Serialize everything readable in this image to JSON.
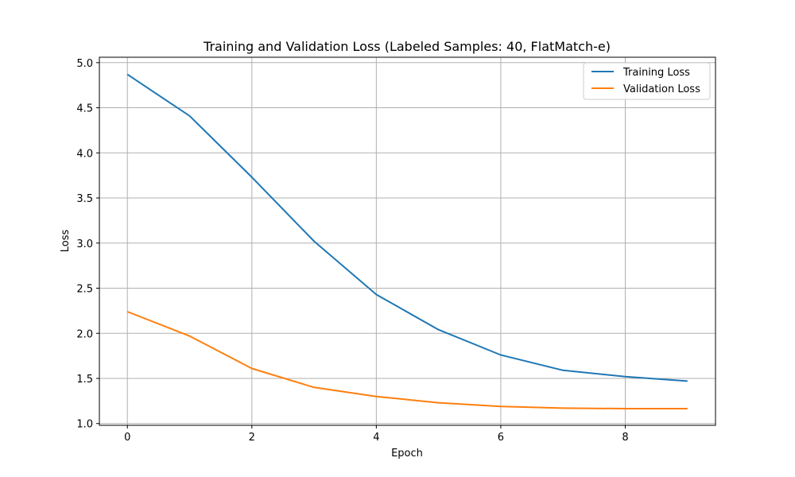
{
  "chart_data": {
    "type": "line",
    "title": "Training and Validation Loss (Labeled Samples: 40, FlatMatch-e)",
    "xlabel": "Epoch",
    "ylabel": "Loss",
    "x": [
      0,
      1,
      2,
      3,
      4,
      5,
      6,
      7,
      8,
      9
    ],
    "xlim": [
      -0.45,
      9.45
    ],
    "ylim": [
      0.98,
      5.06
    ],
    "xticks": [
      0,
      2,
      4,
      6,
      8
    ],
    "yticks": [
      1.0,
      1.5,
      2.0,
      2.5,
      3.0,
      3.5,
      4.0,
      4.5,
      5.0
    ],
    "grid": true,
    "legend_position": "top-right",
    "series": [
      {
        "name": "Training Loss",
        "color": "#1f77b4",
        "values": [
          4.87,
          4.41,
          3.73,
          3.02,
          2.43,
          2.04,
          1.76,
          1.59,
          1.52,
          1.47
        ]
      },
      {
        "name": "Validation Loss",
        "color": "#ff7f0e",
        "values": [
          2.24,
          1.97,
          1.61,
          1.4,
          1.3,
          1.23,
          1.19,
          1.17,
          1.165,
          1.165
        ]
      }
    ]
  }
}
